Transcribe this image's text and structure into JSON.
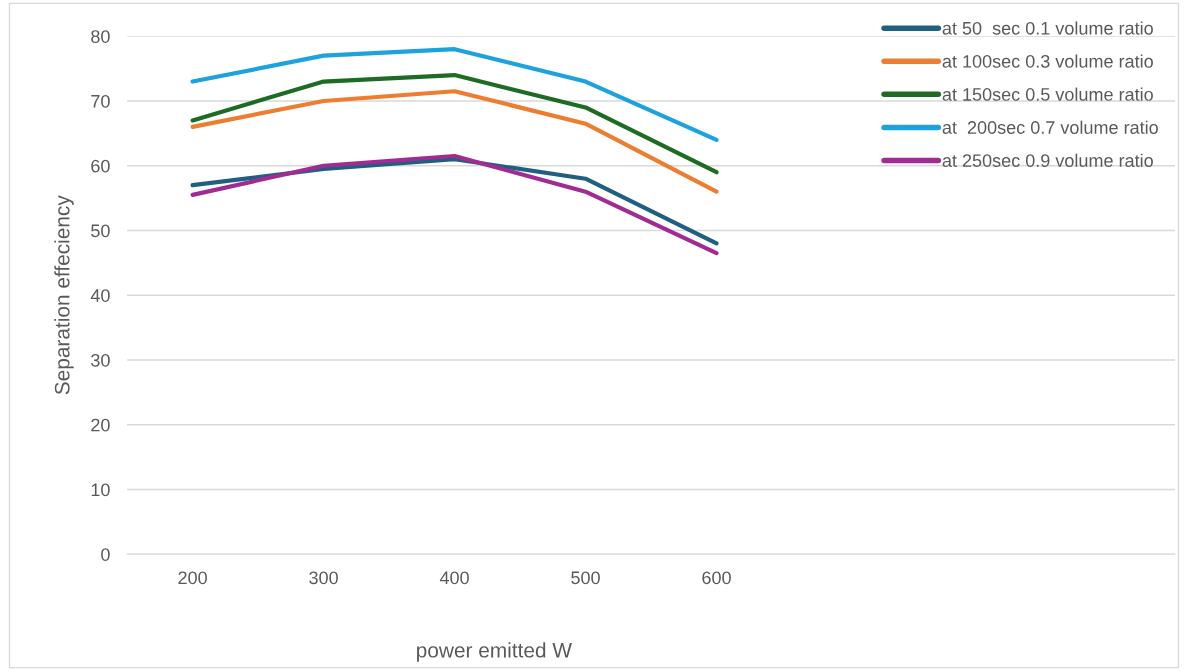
{
  "chart_data": {
    "type": "line",
    "xlabel": "power emitted W",
    "ylabel": "Separation effeciency",
    "categories": [
      "200",
      "300",
      "400",
      "500",
      "600",
      null,
      null,
      null
    ],
    "series": [
      {
        "name": "at 50  sec 0.1 volume ratio",
        "color": "#1f5f80",
        "values": [
          57,
          59.5,
          61,
          58,
          48,
          null,
          null,
          null
        ]
      },
      {
        "name": "at 100sec 0.3 volume ratio",
        "color": "#ed7d31",
        "values": [
          66,
          70,
          71.5,
          66.5,
          56,
          null,
          null,
          null
        ]
      },
      {
        "name": "at 150sec 0.5 volume ratio",
        "color": "#1e6b23",
        "values": [
          67,
          73,
          74,
          69,
          59,
          null,
          null,
          null
        ]
      },
      {
        "name": "at  200sec 0.7 volume ratio",
        "color": "#1ea2dc",
        "values": [
          73,
          77,
          78,
          73,
          64,
          null,
          null,
          null
        ]
      },
      {
        "name": "at 250sec 0.9 volume ratio",
        "color": "#a02b93",
        "values": [
          55.5,
          60,
          61.5,
          56,
          46.5,
          null,
          null,
          null
        ]
      }
    ],
    "ylim": [
      0,
      80
    ],
    "yticks": [
      0,
      10,
      20,
      30,
      40,
      50,
      60,
      70,
      80
    ],
    "grid": "y",
    "legend": "top right",
    "marker": "none",
    "line_style": "solid"
  }
}
